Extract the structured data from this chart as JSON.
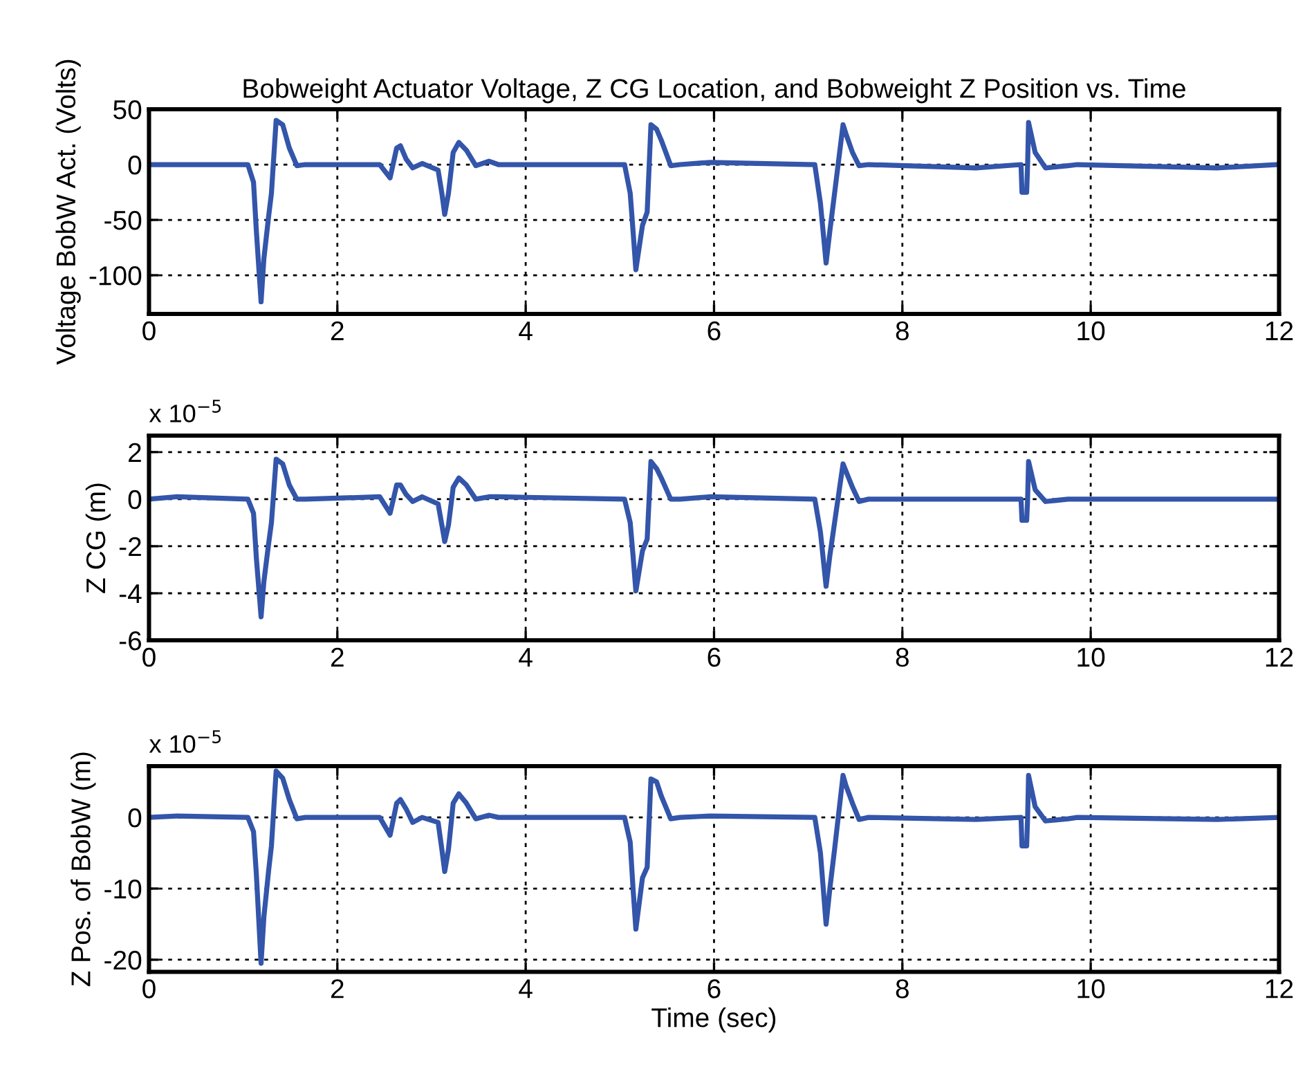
{
  "chart_data": [
    {
      "type": "line",
      "title": "Bobweight Actuator Voltage, Z CG Location, and Bobweight Z Position vs. Time",
      "ylabel": "Voltage BobW Act. (Volts)",
      "x": [
        0,
        0.3,
        1.05,
        1.11,
        1.14,
        1.19,
        1.22,
        1.27,
        1.3,
        1.35,
        1.42,
        1.49,
        1.57,
        1.66,
        2.45,
        2.56,
        2.63,
        2.67,
        2.73,
        2.8,
        2.9,
        3.07,
        3.11,
        3.14,
        3.18,
        3.23,
        3.29,
        3.37,
        3.47,
        3.61,
        3.71,
        5.05,
        5.11,
        5.14,
        5.17,
        5.24,
        5.29,
        5.33,
        5.39,
        5.44,
        5.54,
        5.64,
        5.96,
        7.07,
        7.13,
        7.19,
        7.23,
        7.28,
        7.37,
        7.4,
        7.47,
        7.54,
        7.64,
        8.78,
        9.26,
        9.27,
        9.32,
        9.33,
        9.34,
        9.41,
        9.52,
        9.76,
        9.86,
        11.34,
        12
      ],
      "series": [
        {
          "color": "#3355aa",
          "values": [
            0,
            0,
            0,
            -16,
            -60,
            -124,
            -85,
            -47,
            -26,
            40,
            36,
            15,
            -1,
            0,
            0,
            -12,
            15,
            17,
            5,
            -3,
            1,
            -5,
            -26,
            -45,
            -26,
            11,
            20,
            13,
            -1,
            3,
            0,
            0,
            -26,
            -60,
            -95,
            -55,
            -43,
            36,
            32,
            22,
            -1,
            0,
            2,
            0,
            -35,
            -89,
            -60,
            -26,
            36,
            28,
            11,
            -1,
            0,
            -3,
            0,
            -25,
            -25,
            0,
            38,
            11,
            -3,
            -1,
            0,
            -3,
            0
          ]
        }
      ],
      "xlim": [
        0,
        12
      ],
      "xticks": [
        0,
        2,
        4,
        6,
        8,
        10,
        12
      ],
      "ylim": [
        -135,
        50
      ],
      "yticks": [
        -100,
        -50,
        0,
        50
      ],
      "grid": true,
      "line_style": "solid"
    },
    {
      "type": "line",
      "ylabel": "Z CG (m)",
      "annotations": [
        "x 10$^{−5}$"
      ],
      "x": [
        0,
        0.3,
        1.05,
        1.11,
        1.14,
        1.19,
        1.22,
        1.27,
        1.3,
        1.35,
        1.42,
        1.49,
        1.57,
        1.66,
        2.45,
        2.56,
        2.63,
        2.67,
        2.73,
        2.8,
        2.9,
        3.07,
        3.11,
        3.14,
        3.18,
        3.23,
        3.29,
        3.37,
        3.47,
        3.61,
        3.71,
        5.05,
        5.11,
        5.14,
        5.17,
        5.24,
        5.29,
        5.33,
        5.39,
        5.44,
        5.54,
        5.64,
        5.96,
        7.07,
        7.13,
        7.19,
        7.23,
        7.28,
        7.37,
        7.4,
        7.47,
        7.54,
        7.64,
        8.78,
        9.26,
        9.27,
        9.32,
        9.33,
        9.34,
        9.41,
        9.52,
        9.76,
        9.86,
        11.34,
        12
      ],
      "series": [
        {
          "color": "#3355aa",
          "values": [
            0,
            0.1,
            0,
            -0.6,
            -2.5,
            -5.0,
            -3.5,
            -1.9,
            -1.0,
            1.7,
            1.5,
            0.6,
            0,
            0,
            0.1,
            -0.6,
            0.6,
            0.6,
            0.2,
            -0.1,
            0.1,
            -0.2,
            -1.1,
            -1.8,
            -1.1,
            0.5,
            0.9,
            0.6,
            0,
            0.1,
            0.1,
            0,
            -1.0,
            -2.4,
            -3.9,
            -2.2,
            -1.7,
            1.6,
            1.3,
            0.9,
            0,
            0,
            0.1,
            0,
            -1.4,
            -3.7,
            -2.4,
            -1.0,
            1.5,
            1.2,
            0.5,
            -0.1,
            0,
            0,
            0,
            -0.9,
            -0.9,
            0,
            1.6,
            0.4,
            -0.1,
            0,
            0,
            0,
            0
          ]
        }
      ],
      "xlim": [
        0,
        12
      ],
      "xticks": [
        0,
        2,
        4,
        6,
        8,
        10,
        12
      ],
      "ylim": [
        -6,
        2.7
      ],
      "yticks": [
        -6,
        -4,
        -2,
        0,
        2
      ],
      "grid": true,
      "line_style": "solid"
    },
    {
      "type": "line",
      "ylabel": "Z Pos. of BobW (m)",
      "xlabel": "Time (sec)",
      "annotations": [
        "x 10$^{−5}$"
      ],
      "x": [
        0,
        0.3,
        1.05,
        1.11,
        1.14,
        1.19,
        1.22,
        1.27,
        1.3,
        1.35,
        1.42,
        1.49,
        1.57,
        1.66,
        2.45,
        2.56,
        2.63,
        2.67,
        2.73,
        2.8,
        2.9,
        3.07,
        3.11,
        3.14,
        3.18,
        3.23,
        3.29,
        3.37,
        3.47,
        3.61,
        3.71,
        5.05,
        5.11,
        5.14,
        5.17,
        5.24,
        5.29,
        5.33,
        5.39,
        5.44,
        5.54,
        5.64,
        5.96,
        7.07,
        7.13,
        7.19,
        7.23,
        7.28,
        7.37,
        7.4,
        7.47,
        7.54,
        7.64,
        8.78,
        9.26,
        9.27,
        9.32,
        9.33,
        9.34,
        9.41,
        9.52,
        9.76,
        9.86,
        11.34,
        12
      ],
      "series": [
        {
          "color": "#3355aa",
          "values": [
            0,
            0.2,
            0,
            -2,
            -8,
            -20.5,
            -14,
            -7.5,
            -4,
            6.5,
            5.5,
            2.5,
            -0.2,
            0,
            0,
            -2.5,
            2,
            2.5,
            1.2,
            -0.7,
            0,
            -0.7,
            -4.5,
            -7.6,
            -4.5,
            2,
            3.3,
            2,
            -0.2,
            0.3,
            0,
            0,
            -3.5,
            -10,
            -15.7,
            -8.5,
            -7,
            5.4,
            5,
            3,
            -0.2,
            0,
            0.2,
            0,
            -5,
            -15,
            -10,
            -4.5,
            5.9,
            4.5,
            2,
            -0.3,
            0,
            -0.3,
            0,
            -4,
            -4,
            0,
            5.9,
            1.5,
            -0.5,
            -0.2,
            0,
            -0.3,
            0
          ]
        }
      ],
      "xlim": [
        0,
        12
      ],
      "xticks": [
        0,
        2,
        4,
        6,
        8,
        10,
        12
      ],
      "ylim": [
        -21.7,
        7.2
      ],
      "yticks": [
        -20,
        -10,
        0
      ],
      "grid": true,
      "line_style": "solid"
    }
  ]
}
